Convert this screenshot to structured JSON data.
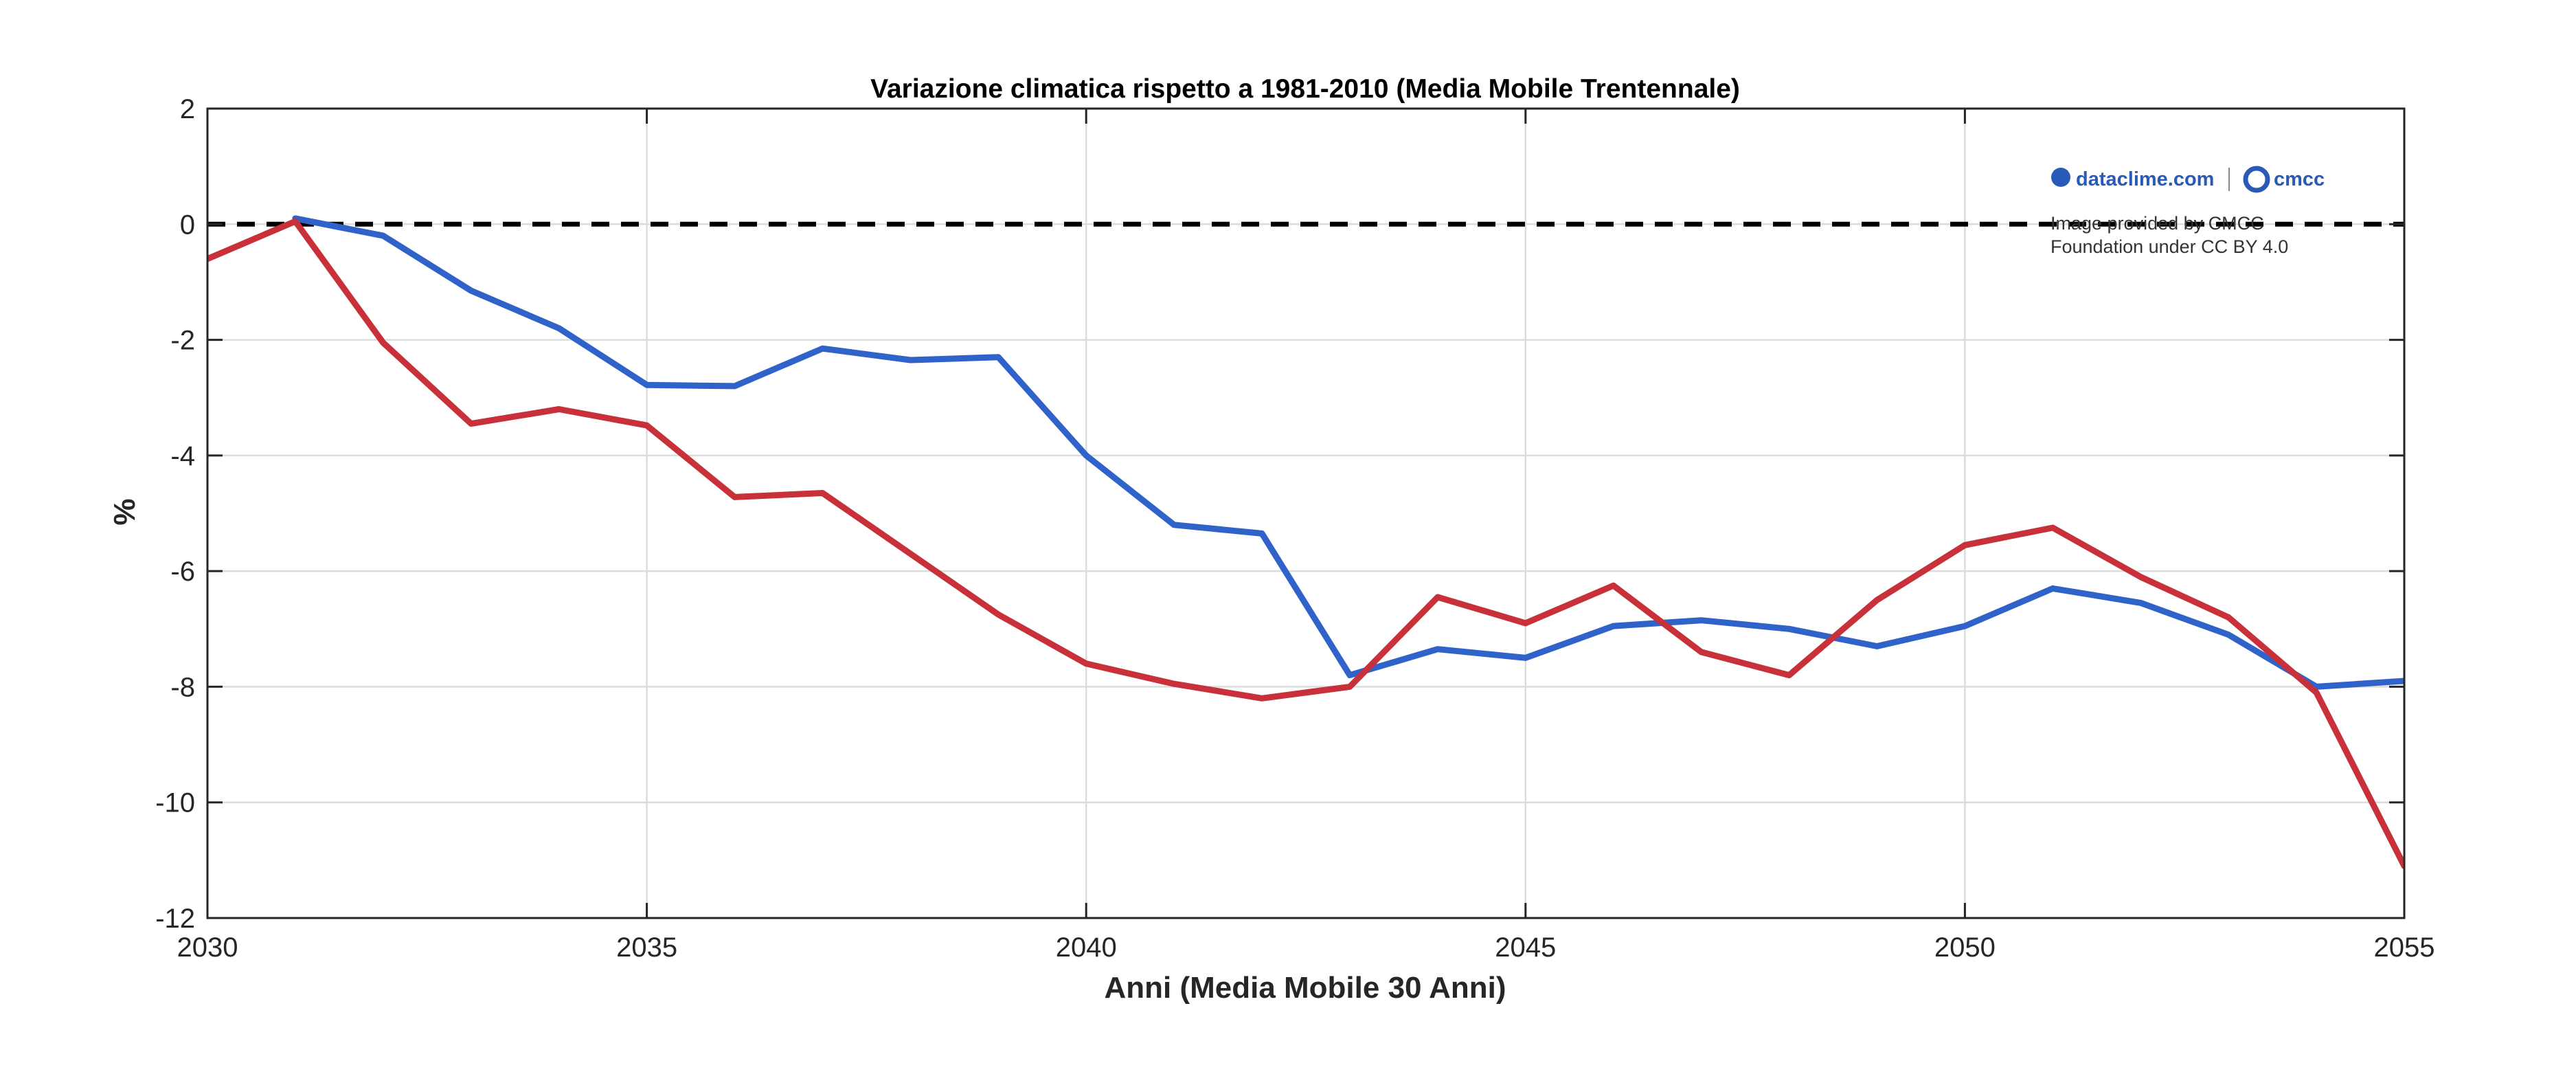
{
  "chart_data": {
    "type": "line",
    "title": "Variazione climatica rispetto a 1981-2010 (Media Mobile Trentennale)",
    "xlabel": "Anni (Media Mobile 30 Anni)",
    "ylabel": "%",
    "xlim": [
      2030,
      2055
    ],
    "ylim": [
      -12,
      2
    ],
    "x_ticks": [
      "2030",
      "2035",
      "2040",
      "2045",
      "2050",
      "2055"
    ],
    "y_ticks": [
      "2",
      "0",
      "-2",
      "-4",
      "-6",
      "-8",
      "-10",
      "-12"
    ],
    "grid": true,
    "reference_line": {
      "y": 0,
      "style": "dashed",
      "color": "#000000"
    },
    "x": [
      2030,
      2031,
      2032,
      2033,
      2034,
      2035,
      2036,
      2037,
      2038,
      2039,
      2040,
      2041,
      2042,
      2043,
      2044,
      2045,
      2046,
      2047,
      2048,
      2049,
      2050,
      2051,
      2052,
      2053,
      2054,
      2055
    ],
    "series": [
      {
        "color": "#2f63c9",
        "values": [
          null,
          0.1,
          -0.2,
          -1.15,
          -1.8,
          -2.78,
          -2.8,
          -2.15,
          -2.35,
          -2.3,
          -4.0,
          -5.2,
          -5.35,
          -7.8,
          -7.35,
          -7.5,
          -6.95,
          -6.85,
          -7.0,
          -7.3,
          -6.95,
          -6.3,
          -6.55,
          -7.1,
          -8.0,
          -7.9
        ]
      },
      {
        "color": "#c8313a",
        "values": [
          -0.6,
          0.05,
          -2.05,
          -3.45,
          -3.2,
          -3.48,
          -4.72,
          -4.65,
          -5.7,
          -6.75,
          -7.6,
          -7.95,
          -8.2,
          -8.0,
          -6.45,
          -6.9,
          -6.25,
          -7.4,
          -7.8,
          -6.5,
          -5.55,
          -5.25,
          -6.1,
          -6.8,
          -8.1,
          -11.1
        ]
      }
    ]
  },
  "watermark": {
    "brand_left": "dataclime.com",
    "brand_right": "cmcc",
    "line1": "Image provided by CMCC",
    "line2": "Foundation under CC BY 4.0"
  }
}
